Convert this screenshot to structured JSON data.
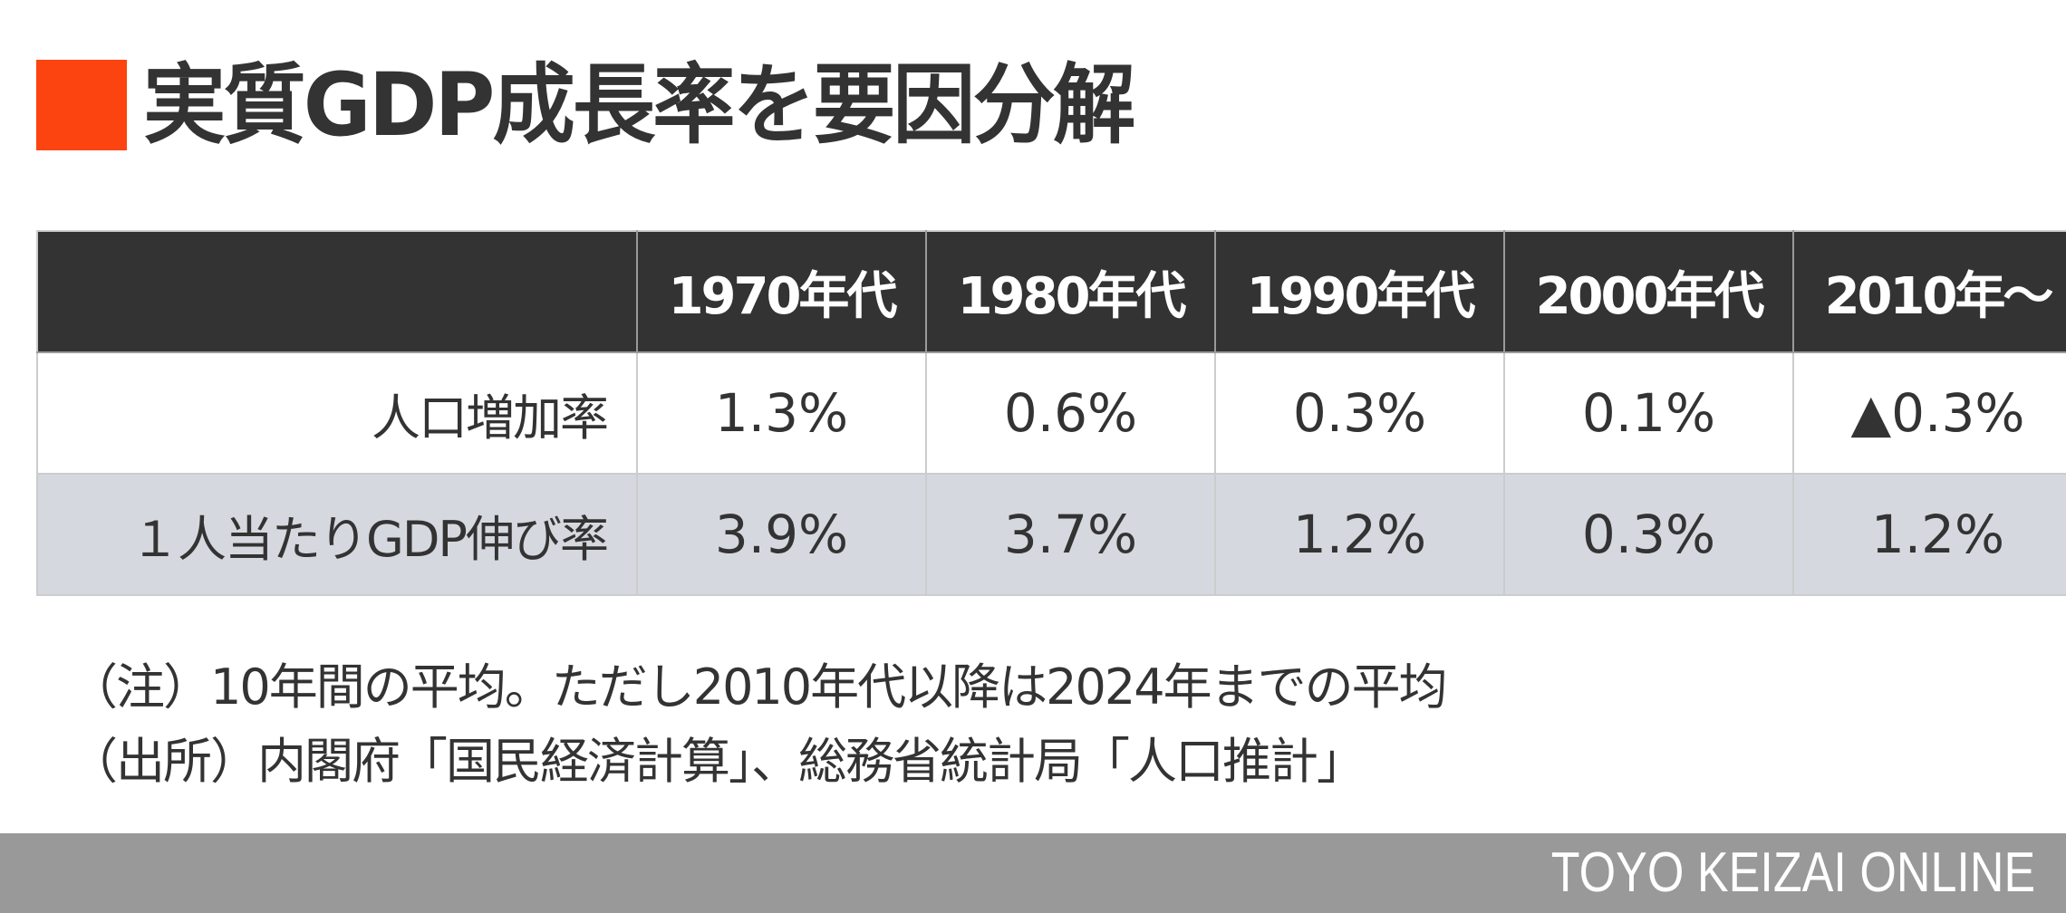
{
  "title": {
    "marker_color": "#fc4410",
    "text": "実質GDP成長率を要因分解"
  },
  "table": {
    "corner": "",
    "columns": [
      "1970年代",
      "1980年代",
      "1990年代",
      "2000年代",
      "2010年〜"
    ],
    "rows": [
      {
        "label": "人口増加率",
        "values": [
          "1.3%",
          "0.6%",
          "0.3%",
          "0.1%",
          "▲0.3%"
        ]
      },
      {
        "label": "１人当たりGDP伸び率",
        "values": [
          "3.9%",
          "3.7%",
          "1.2%",
          "0.3%",
          "1.2%"
        ]
      }
    ],
    "colors": {
      "header_bg": "#333333",
      "header_text": "#ffffff",
      "alt_row_bg": "#d5d8df",
      "border": "#cccccc"
    }
  },
  "notes": {
    "note": "（注）10年間の平均。ただし2010年代以降は2024年までの平均",
    "source": "（出所）内閣府「国民経済計算」、総務省統計局「人口推計」"
  },
  "footer": {
    "brand": "TOYO KEIZAI ONLINE",
    "bar_color": "#999999"
  },
  "chart_data": {
    "type": "table",
    "title": "実質GDP成長率を要因分解",
    "categories": [
      "1970年代",
      "1980年代",
      "1990年代",
      "2000年代",
      "2010年〜"
    ],
    "series": [
      {
        "name": "人口増加率",
        "values": [
          1.3,
          0.6,
          0.3,
          0.1,
          -0.3
        ],
        "display": [
          "1.3%",
          "0.6%",
          "0.3%",
          "0.1%",
          "▲0.3%"
        ]
      },
      {
        "name": "１人当たりGDP伸び率",
        "values": [
          3.9,
          3.7,
          1.2,
          0.3,
          1.2
        ],
        "display": [
          "3.9%",
          "3.7%",
          "1.2%",
          "0.3%",
          "1.2%"
        ]
      }
    ],
    "unit": "%",
    "notes": [
      "（注）10年間の平均。ただし2010年代以降は2024年までの平均",
      "（出所）内閣府「国民経済計算」、総務省統計局「人口推計」"
    ]
  }
}
